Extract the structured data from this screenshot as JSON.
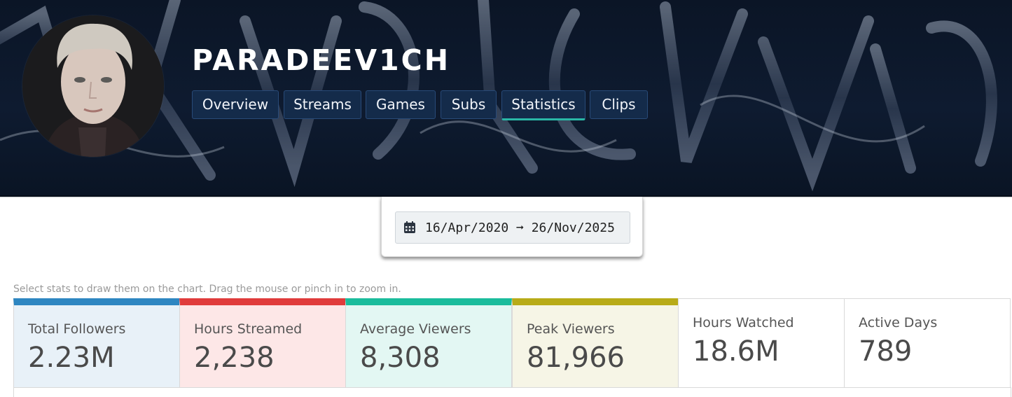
{
  "channel": {
    "name": "PARADEEV1CH"
  },
  "nav": {
    "tabs": [
      {
        "label": "Overview",
        "active": false
      },
      {
        "label": "Streams",
        "active": false
      },
      {
        "label": "Games",
        "active": false
      },
      {
        "label": "Subs",
        "active": false
      },
      {
        "label": "Statistics",
        "active": true
      },
      {
        "label": "Clips",
        "active": false
      }
    ],
    "active_underline_color": "#2ab7a6"
  },
  "date_range": {
    "icon": "calendar-icon",
    "text": "16/Apr/2020 ➞ 26/Nov/2025"
  },
  "hint": "Select stats to draw them on the chart. Drag the mouse or pinch in to zoom in.",
  "stats": [
    {
      "label": "Total Followers",
      "value": "2.23M",
      "accent": "#2e86c1",
      "bg": "#e8f1f8",
      "selected": true
    },
    {
      "label": "Hours Streamed",
      "value": "2,238",
      "accent": "#e03b3b",
      "bg": "#fde7e7",
      "selected": true
    },
    {
      "label": "Average Viewers",
      "value": "8,308",
      "accent": "#1abc9c",
      "bg": "#e3f7f3",
      "selected": true
    },
    {
      "label": "Peak Viewers",
      "value": "81,966",
      "accent": "#b8ab18",
      "bg": "#f6f5e6",
      "selected": true
    },
    {
      "label": "Hours Watched",
      "value": "18.6M",
      "accent": "#d9d9d9",
      "bg": "#ffffff",
      "selected": false
    },
    {
      "label": "Active Days",
      "value": "789",
      "accent": "#d9d9d9",
      "bg": "#ffffff",
      "selected": false
    }
  ]
}
